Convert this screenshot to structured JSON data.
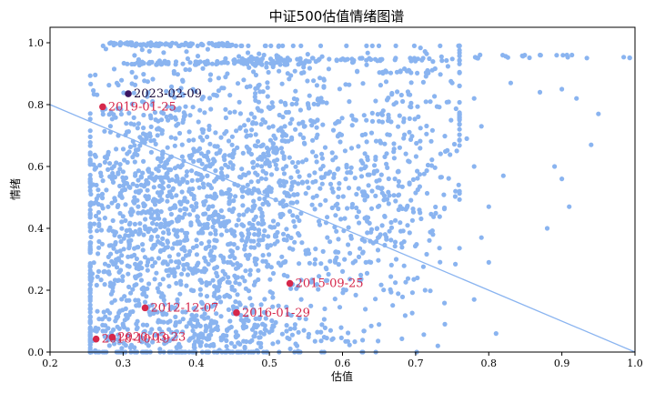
{
  "chart_data": {
    "type": "scatter",
    "title": "中证500估值情绪图谱",
    "xlabel": "估值",
    "ylabel": "情绪",
    "xlim": [
      0.2,
      1.0
    ],
    "ylim": [
      0.0,
      1.05
    ],
    "xticks": [
      "0.2",
      "0.3",
      "0.4",
      "0.5",
      "0.6",
      "0.7",
      "0.8",
      "0.9",
      "1.0"
    ],
    "yticks": [
      "0.0",
      "0.2",
      "0.4",
      "0.6",
      "0.8",
      "1.0"
    ],
    "grid": false,
    "colors": {
      "points": "#8ab4f0",
      "trend": "#8ab4f0",
      "highlight": "#d6274a",
      "current": "#3a1460",
      "annotation": "#d6274a",
      "current_annotation": "#1a0a3a"
    },
    "trend_line": [
      {
        "x": 0.2,
        "y": 0.8
      },
      {
        "x": 1.0,
        "y": 0.0
      }
    ],
    "annotations": [
      {
        "label": "2023-02-09",
        "x": 0.307,
        "y": 0.835,
        "current": true
      },
      {
        "label": "2019-01-25",
        "x": 0.272,
        "y": 0.793
      },
      {
        "label": "2015-09-25",
        "x": 0.528,
        "y": 0.222
      },
      {
        "label": "2012-12-07",
        "x": 0.33,
        "y": 0.143
      },
      {
        "label": "2016-01-29",
        "x": 0.455,
        "y": 0.127
      },
      {
        "label": "2018-10-19",
        "x": 0.263,
        "y": 0.042
      },
      {
        "label": "2020-03-23",
        "x": 0.285,
        "y": 0.048
      }
    ],
    "clusters": [
      {
        "cx": 0.29,
        "cy": 0.35,
        "sx": 0.04,
        "sy": 0.25,
        "n": 420
      },
      {
        "cx": 0.36,
        "cy": 0.5,
        "sx": 0.05,
        "sy": 0.25,
        "n": 560
      },
      {
        "cx": 0.44,
        "cy": 0.3,
        "sx": 0.05,
        "sy": 0.22,
        "n": 380
      },
      {
        "cx": 0.49,
        "cy": 0.62,
        "sx": 0.04,
        "sy": 0.22,
        "n": 300
      },
      {
        "cx": 0.56,
        "cy": 0.45,
        "sx": 0.05,
        "sy": 0.22,
        "n": 200
      },
      {
        "cx": 0.67,
        "cy": 0.5,
        "sx": 0.04,
        "sy": 0.2,
        "n": 240
      },
      {
        "cx": 0.4,
        "cy": 0.06,
        "sx": 0.1,
        "sy": 0.04,
        "n": 220
      },
      {
        "cx": 0.74,
        "cy": 0.85,
        "sx": 0.1,
        "sy": 0.1,
        "n": 60
      },
      {
        "cx": 0.62,
        "cy": 0.75,
        "sx": 0.08,
        "sy": 0.14,
        "n": 120
      }
    ],
    "bands": [
      {
        "x0": 0.28,
        "x1": 0.45,
        "y": 0.995,
        "n": 70
      },
      {
        "x0": 0.3,
        "x1": 0.55,
        "y": 0.935,
        "n": 80
      },
      {
        "x0": 0.45,
        "x1": 0.75,
        "y": 0.945,
        "n": 70
      },
      {
        "x0": 0.62,
        "x1": 0.72,
        "y": 0.905,
        "n": 20
      },
      {
        "x0": 0.78,
        "x1": 1.0,
        "y": 0.955,
        "n": 22
      }
    ],
    "sparse_points": [
      {
        "x": 0.75,
        "y": 0.87
      },
      {
        "x": 0.78,
        "y": 0.82
      },
      {
        "x": 0.83,
        "y": 0.87
      },
      {
        "x": 0.87,
        "y": 0.84
      },
      {
        "x": 0.9,
        "y": 0.85
      },
      {
        "x": 0.92,
        "y": 0.82
      },
      {
        "x": 0.95,
        "y": 0.77
      },
      {
        "x": 0.94,
        "y": 0.67
      },
      {
        "x": 0.89,
        "y": 0.6
      },
      {
        "x": 0.9,
        "y": 0.56
      },
      {
        "x": 0.91,
        "y": 0.47
      },
      {
        "x": 0.88,
        "y": 0.4
      },
      {
        "x": 0.82,
        "y": 0.57
      },
      {
        "x": 0.8,
        "y": 0.47
      },
      {
        "x": 0.8,
        "y": 0.29
      },
      {
        "x": 0.79,
        "y": 0.37
      },
      {
        "x": 0.77,
        "y": 0.69
      },
      {
        "x": 0.79,
        "y": 0.73
      },
      {
        "x": 0.78,
        "y": 0.17
      },
      {
        "x": 0.74,
        "y": 0.09
      },
      {
        "x": 0.81,
        "y": 0.06
      },
      {
        "x": 0.78,
        "y": 0.6
      },
      {
        "x": 0.76,
        "y": 0.52
      }
    ]
  }
}
